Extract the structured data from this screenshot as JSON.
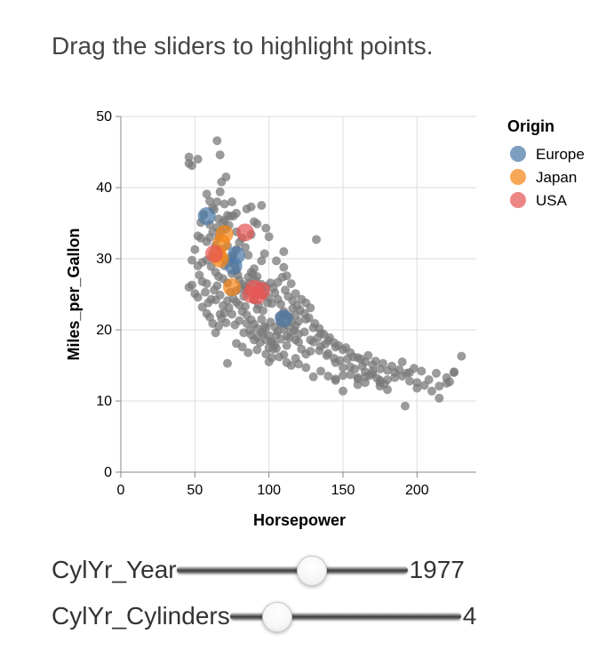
{
  "instruction": "Drag the sliders to highlight points.",
  "chart_data": {
    "type": "scatter",
    "xlabel": "Horsepower",
    "ylabel": "Miles_per_Gallon",
    "xlim": [
      0,
      240
    ],
    "ylim": [
      0,
      50
    ],
    "xticks": [
      0,
      50,
      100,
      150,
      200
    ],
    "yticks": [
      0,
      10,
      20,
      30,
      40,
      50
    ],
    "grid": true,
    "legend": {
      "title": "Origin",
      "placement": "top-right",
      "entries": [
        {
          "name": "Europe",
          "color": "#4c78a8"
        },
        {
          "name": "Japan",
          "color": "#f58518"
        },
        {
          "name": "USA",
          "color": "#e45756"
        }
      ]
    },
    "unselected_color": "#7a7a7a",
    "background_points": [
      [
        46,
        44.3
      ],
      [
        46,
        43.4
      ],
      [
        48,
        43.1
      ],
      [
        52,
        44
      ],
      [
        65,
        46.6
      ],
      [
        67,
        44.6
      ],
      [
        58,
        39.1
      ],
      [
        60,
        38.1
      ],
      [
        62,
        37.2
      ],
      [
        65,
        38
      ],
      [
        67,
        39.4
      ],
      [
        68,
        40.8
      ],
      [
        71,
        41.5
      ],
      [
        75,
        38
      ],
      [
        70,
        37.7
      ],
      [
        72,
        36.1
      ],
      [
        74,
        36
      ],
      [
        76,
        36
      ],
      [
        78,
        36.4
      ],
      [
        63,
        36.9
      ],
      [
        66,
        35.6
      ],
      [
        69,
        35.1
      ],
      [
        71,
        34.2
      ],
      [
        73,
        34.7
      ],
      [
        65,
        34.4
      ],
      [
        62,
        33.8
      ],
      [
        60,
        33
      ],
      [
        58,
        32.4
      ],
      [
        54,
        32.9
      ],
      [
        52,
        33.2
      ],
      [
        50,
        31.3
      ],
      [
        48,
        29.8
      ],
      [
        52,
        29
      ],
      [
        55,
        29.5
      ],
      [
        58,
        29.8
      ],
      [
        61,
        28.9
      ],
      [
        64,
        28.1
      ],
      [
        66,
        27.5
      ],
      [
        69,
        27.2
      ],
      [
        72,
        26.6
      ],
      [
        75,
        27.9
      ],
      [
        78,
        28.4
      ],
      [
        80,
        27
      ],
      [
        82,
        26.4
      ],
      [
        84,
        26.1
      ],
      [
        86,
        27.4
      ],
      [
        88,
        28.1
      ],
      [
        90,
        28.6
      ],
      [
        92,
        27.5
      ],
      [
        95,
        26.4
      ],
      [
        97,
        25.4
      ],
      [
        100,
        24.5
      ],
      [
        102,
        23.7
      ],
      [
        104,
        25.2
      ],
      [
        106,
        24.3
      ],
      [
        108,
        23.6
      ],
      [
        110,
        22.6
      ],
      [
        112,
        22
      ],
      [
        115,
        21.1
      ],
      [
        118,
        20.6
      ],
      [
        120,
        19.4
      ],
      [
        68,
        31.3
      ],
      [
        70,
        29
      ],
      [
        72,
        31.8
      ],
      [
        74,
        29.5
      ],
      [
        76,
        30.6
      ],
      [
        78,
        31.3
      ],
      [
        80,
        32.3
      ],
      [
        82,
        32.9
      ],
      [
        84,
        31.6
      ],
      [
        86,
        30.5
      ],
      [
        88,
        33.4
      ],
      [
        90,
        35.2
      ],
      [
        92,
        34.9
      ],
      [
        95,
        37.5
      ],
      [
        98,
        34.3
      ],
      [
        100,
        33.1
      ],
      [
        78,
        33.8
      ],
      [
        85,
        37
      ],
      [
        88,
        37.3
      ],
      [
        95,
        29.7
      ],
      [
        97,
        30.7
      ],
      [
        105,
        29.7
      ],
      [
        110,
        28.8
      ],
      [
        112,
        27.6
      ],
      [
        115,
        26.5
      ],
      [
        118,
        25.1
      ],
      [
        122,
        24.3
      ],
      [
        125,
        23.8
      ],
      [
        128,
        23.1
      ],
      [
        132,
        32.7
      ],
      [
        125,
        21.5
      ],
      [
        130,
        20.3
      ],
      [
        135,
        19.5
      ],
      [
        140,
        18.5
      ],
      [
        145,
        17.6
      ],
      [
        150,
        17.2
      ],
      [
        155,
        16.8
      ],
      [
        160,
        16.1
      ],
      [
        165,
        15.5
      ],
      [
        170,
        15.1
      ],
      [
        175,
        14.5
      ],
      [
        180,
        14.3
      ],
      [
        185,
        14
      ],
      [
        190,
        13.5
      ],
      [
        195,
        12.8
      ],
      [
        200,
        11.8
      ],
      [
        205,
        12.2
      ],
      [
        210,
        11.4
      ],
      [
        215,
        12.1
      ],
      [
        220,
        13.3
      ],
      [
        225,
        14
      ],
      [
        230,
        16.3
      ],
      [
        140,
        16.7
      ],
      [
        145,
        15.4
      ],
      [
        150,
        14.7
      ],
      [
        155,
        13.7
      ],
      [
        160,
        13.1
      ],
      [
        165,
        13.4
      ],
      [
        170,
        14.2
      ],
      [
        175,
        12.9
      ],
      [
        180,
        13
      ],
      [
        190,
        15.5
      ],
      [
        198,
        14.6
      ],
      [
        208,
        13
      ],
      [
        215,
        10.4
      ],
      [
        220,
        12.5
      ],
      [
        225,
        14.1
      ],
      [
        192,
        9.3
      ],
      [
        180,
        11.6
      ],
      [
        175,
        12.6
      ],
      [
        165,
        14.1
      ],
      [
        160,
        13.3
      ],
      [
        150,
        11.4
      ],
      [
        145,
        13.1
      ],
      [
        138,
        18
      ],
      [
        135,
        17.7
      ],
      [
        133,
        18.9
      ],
      [
        130,
        18.3
      ],
      [
        128,
        17
      ],
      [
        125,
        16.6
      ],
      [
        122,
        17.3
      ],
      [
        120,
        18.3
      ],
      [
        118,
        18.6
      ],
      [
        115,
        19.7
      ],
      [
        112,
        19.1
      ],
      [
        110,
        20.1
      ],
      [
        108,
        20.9
      ],
      [
        105,
        19.3
      ],
      [
        102,
        18.4
      ],
      [
        100,
        17.5
      ],
      [
        98,
        18.6
      ],
      [
        95,
        19.7
      ],
      [
        92,
        20.2
      ],
      [
        90,
        20.8
      ],
      [
        88,
        21.4
      ],
      [
        85,
        22.1
      ],
      [
        82,
        22.6
      ],
      [
        80,
        23.5
      ],
      [
        78,
        23.9
      ],
      [
        76,
        24.4
      ],
      [
        74,
        25.3
      ],
      [
        72,
        24.1
      ],
      [
        70,
        22.4
      ],
      [
        68,
        21.6
      ],
      [
        66,
        20.5
      ],
      [
        64,
        19.6
      ],
      [
        62,
        20.9
      ],
      [
        60,
        21.8
      ],
      [
        58,
        22.3
      ],
      [
        55,
        23.2
      ],
      [
        52,
        24.6
      ],
      [
        50,
        25.1
      ],
      [
        48,
        26.3
      ],
      [
        46,
        26
      ],
      [
        92,
        22.9
      ],
      [
        95,
        21.5
      ],
      [
        98,
        20.3
      ],
      [
        100,
        19.2
      ],
      [
        102,
        18.2
      ],
      [
        105,
        17.4
      ],
      [
        108,
        18.7
      ],
      [
        110,
        16.5
      ],
      [
        112,
        15.4
      ],
      [
        115,
        15
      ],
      [
        118,
        16
      ],
      [
        120,
        15.2
      ],
      [
        125,
        14.7
      ],
      [
        130,
        13.4
      ],
      [
        135,
        14.2
      ],
      [
        140,
        13.5
      ],
      [
        145,
        12.9
      ],
      [
        150,
        13.6
      ],
      [
        155,
        14.8
      ],
      [
        160,
        12.3
      ],
      [
        165,
        12.6
      ],
      [
        170,
        13.8
      ],
      [
        175,
        12.1
      ],
      [
        185,
        13.3
      ],
      [
        195,
        14
      ],
      [
        200,
        12.6
      ],
      [
        72,
        15.3
      ],
      [
        78,
        18.1
      ],
      [
        82,
        17.6
      ],
      [
        86,
        16.8
      ],
      [
        88,
        19.3
      ],
      [
        90,
        18.6
      ],
      [
        92,
        17.2
      ],
      [
        94,
        18.2
      ],
      [
        96,
        19.4
      ],
      [
        98,
        16.6
      ],
      [
        100,
        15.5
      ],
      [
        102,
        16.1
      ],
      [
        104,
        17.9
      ],
      [
        106,
        19.8
      ],
      [
        108,
        21.3
      ],
      [
        110,
        22.2
      ],
      [
        112,
        20.7
      ],
      [
        114,
        21.8
      ],
      [
        116,
        23
      ],
      [
        118,
        22.1
      ],
      [
        90,
        24.2
      ],
      [
        93,
        23.5
      ],
      [
        96,
        22.7
      ],
      [
        99,
        23.8
      ],
      [
        101,
        21.1
      ],
      [
        104,
        20.4
      ],
      [
        107,
        21.9
      ],
      [
        85,
        20.9
      ],
      [
        83,
        19.6
      ],
      [
        80,
        21.3
      ],
      [
        77,
        20.7
      ],
      [
        75,
        22.2
      ],
      [
        73,
        23.1
      ],
      [
        71,
        21
      ],
      [
        69,
        23.4
      ],
      [
        67,
        24.9
      ],
      [
        65,
        26.2
      ],
      [
        63,
        25.6
      ],
      [
        61,
        24.3
      ],
      [
        59,
        23.8
      ],
      [
        57,
        25.3
      ],
      [
        55,
        26.8
      ],
      [
        53,
        27.7
      ],
      [
        62,
        30.5
      ],
      [
        64,
        31.9
      ],
      [
        66,
        33
      ],
      [
        68,
        33.9
      ],
      [
        70,
        35.4
      ],
      [
        60,
        34.8
      ],
      [
        56,
        36.2
      ],
      [
        54,
        35.1
      ],
      [
        75,
        30.1
      ],
      [
        77,
        29.1
      ],
      [
        79,
        27.7
      ],
      [
        81,
        25.8
      ],
      [
        83,
        24.7
      ],
      [
        85,
        25.6
      ],
      [
        87,
        26.6
      ],
      [
        89,
        27.8
      ],
      [
        91,
        26.9
      ],
      [
        93,
        25.8
      ],
      [
        96,
        24.9
      ],
      [
        98,
        26.1
      ],
      [
        101,
        26.6
      ],
      [
        103,
        25.9
      ],
      [
        106,
        26.7
      ],
      [
        109,
        27.4
      ],
      [
        111,
        25.6
      ],
      [
        113,
        24.7
      ],
      [
        116,
        24.1
      ],
      [
        119,
        23.4
      ],
      [
        121,
        22.8
      ],
      [
        124,
        22.3
      ],
      [
        127,
        21.7
      ],
      [
        131,
        20.9
      ],
      [
        134,
        20.2
      ],
      [
        137,
        19.4
      ],
      [
        141,
        18.9
      ],
      [
        144,
        18.2
      ],
      [
        147,
        17.8
      ],
      [
        152,
        17.5
      ],
      [
        157,
        16.2
      ],
      [
        162,
        15.9
      ],
      [
        167,
        16.4
      ],
      [
        172,
        15.6
      ],
      [
        177,
        15.3
      ],
      [
        183,
        14.9
      ],
      [
        188,
        14.4
      ],
      [
        193,
        13.9
      ],
      [
        203,
        14.2
      ],
      [
        213,
        13.9
      ],
      [
        222,
        12.7
      ],
      [
        70,
        30
      ],
      [
        58,
        26.5
      ],
      [
        64,
        24.2
      ],
      [
        67,
        22.2
      ],
      [
        78,
        25.5
      ],
      [
        84,
        23.3
      ],
      [
        87,
        19.9
      ],
      [
        92,
        19
      ],
      [
        97,
        20.5
      ],
      [
        103,
        17.3
      ],
      [
        107,
        16.2
      ],
      [
        112,
        17.8
      ],
      [
        114,
        18.9
      ],
      [
        117,
        20
      ],
      [
        120,
        21.2
      ],
      [
        124,
        19.7
      ],
      [
        128,
        18.6
      ],
      [
        134,
        17.1
      ],
      [
        139,
        16.4
      ],
      [
        144,
        16
      ],
      [
        148,
        15.7
      ],
      [
        153,
        15.9
      ],
      [
        158,
        14.5
      ],
      [
        163,
        14.9
      ],
      [
        168,
        13.6
      ],
      [
        173,
        13.2
      ],
      [
        178,
        12.4
      ],
      [
        110,
        31
      ]
    ],
    "selected_points": [
      {
        "origin": "Europe",
        "hp": 58,
        "mpg": 36.0
      },
      {
        "origin": "Europe",
        "hp": 78,
        "mpg": 30.5
      },
      {
        "origin": "Europe",
        "hp": 76,
        "mpg": 29.0
      },
      {
        "origin": "Europe",
        "hp": 110,
        "mpg": 21.6
      },
      {
        "origin": "Japan",
        "hp": 70,
        "mpg": 33.5
      },
      {
        "origin": "Japan",
        "hp": 68,
        "mpg": 32.2
      },
      {
        "origin": "Japan",
        "hp": 65,
        "mpg": 30.6
      },
      {
        "origin": "Japan",
        "hp": 67,
        "mpg": 30.0
      },
      {
        "origin": "Japan",
        "hp": 75,
        "mpg": 26.0
      },
      {
        "origin": "USA",
        "hp": 63,
        "mpg": 30.7
      },
      {
        "origin": "USA",
        "hp": 84,
        "mpg": 33.7
      },
      {
        "origin": "USA",
        "hp": 88,
        "mpg": 25.0
      },
      {
        "origin": "USA",
        "hp": 90,
        "mpg": 25.8
      },
      {
        "origin": "USA",
        "hp": 92,
        "mpg": 24.8
      },
      {
        "origin": "USA",
        "hp": 95,
        "mpg": 25.5
      }
    ]
  },
  "sliders": [
    {
      "label": "CylYr_Year",
      "value": "1977",
      "min": 1970,
      "max": 1982,
      "current": 1977
    },
    {
      "label": "CylYr_Cylinders",
      "value": "4",
      "min": 3,
      "max": 8,
      "current": 4
    }
  ]
}
